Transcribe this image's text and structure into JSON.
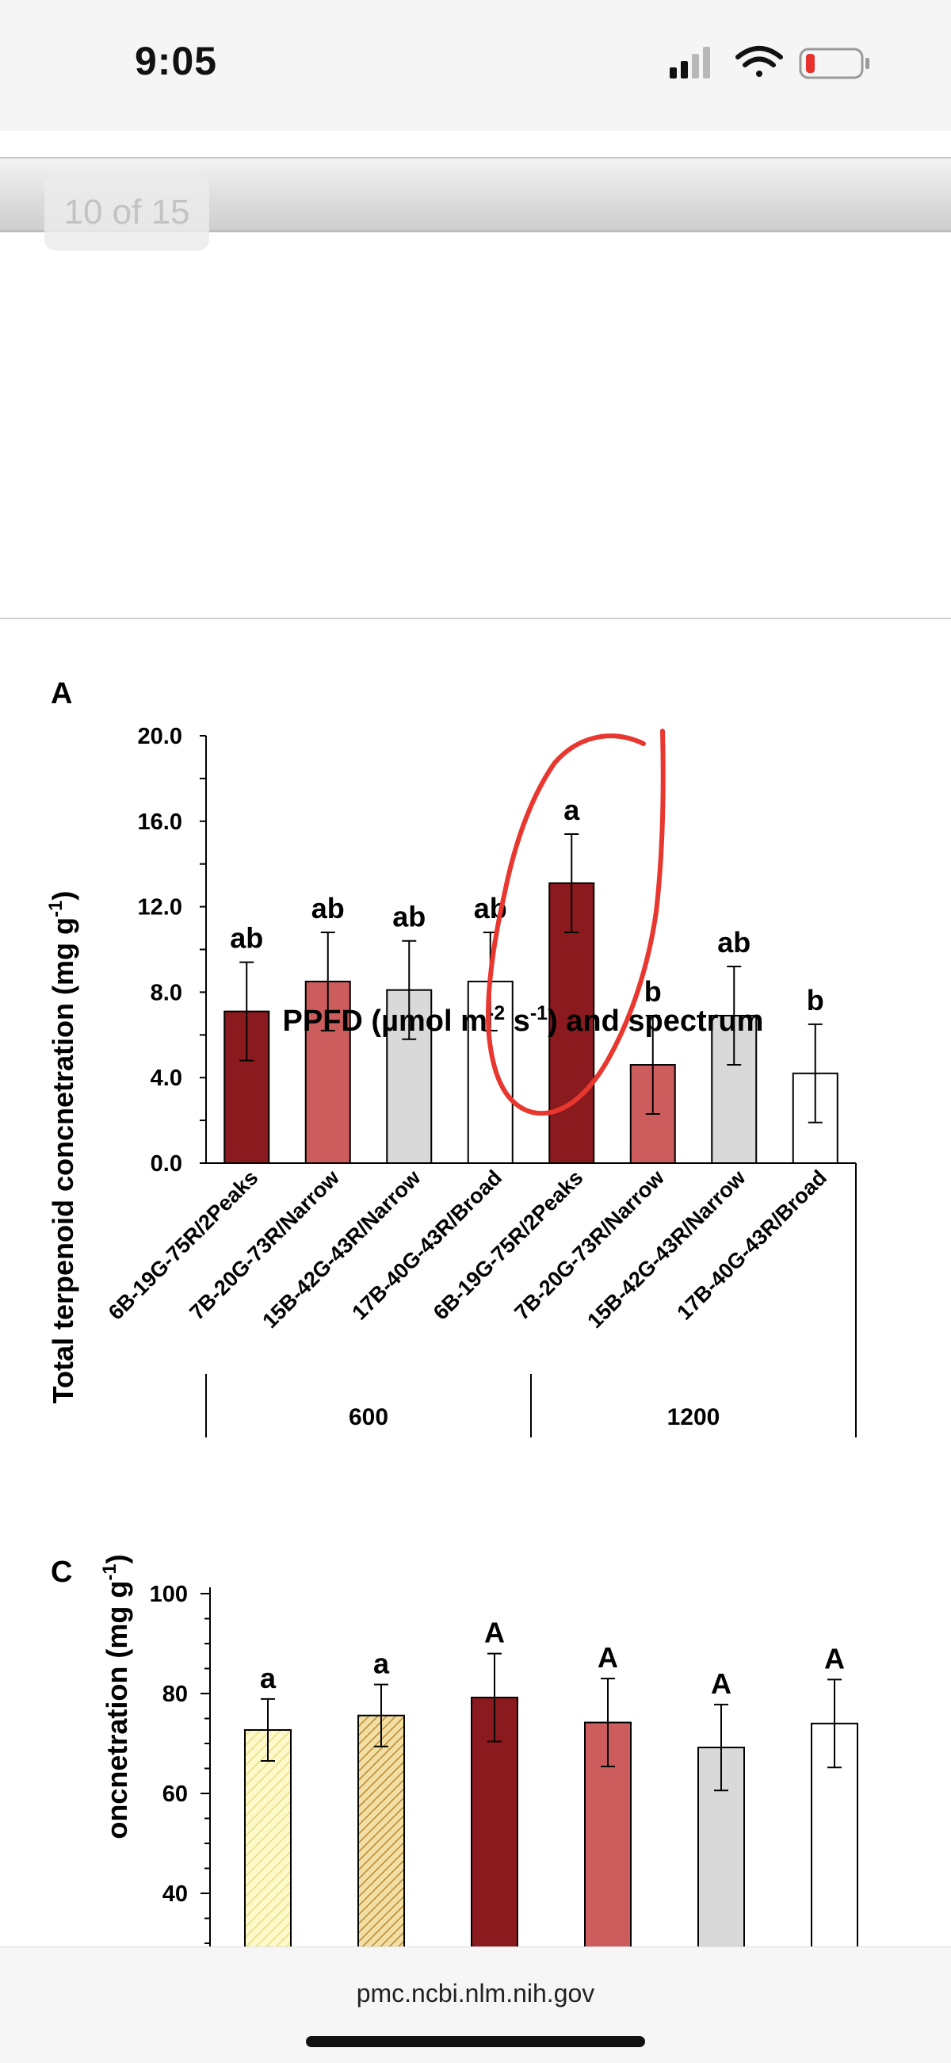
{
  "status_bar": {
    "time": "9:05",
    "icons": [
      "cellular-signal-icon",
      "wifi-icon",
      "battery-low-icon"
    ],
    "battery_color": "#e5322d"
  },
  "viewer": {
    "page_indicator": "10 of 15"
  },
  "browser": {
    "url": "pmc.ncbi.nlm.nih.gov"
  },
  "annotation": {
    "color": "#e8372f",
    "description": "hand-drawn circle around 6B-19G-75R/2Peaks at 1200"
  },
  "chart_data": [
    {
      "type": "bar",
      "panel_label": "A",
      "title": "",
      "ylabel": "Total terpenoid concnetration (mg g",
      "ylabel_sup": "-1",
      "ylabel_end": ")",
      "xlabel": "PPFD (µmol m",
      "xlabel_sup1": "-2",
      "xlabel_mid": " s",
      "xlabel_sup2": "-1",
      "xlabel_end": ") and spectrum",
      "ylim": [
        0,
        20
      ],
      "yticks": [
        "0.0",
        "4.0",
        "8.0",
        "12.0",
        "16.0",
        "20.0"
      ],
      "yticks_values": [
        0,
        4,
        8,
        12,
        16,
        20
      ],
      "categories": [
        "6B-19G-75R/2Peaks",
        "7B-20G-73R/Narrow",
        "15B-42G-43R/Narrow",
        "17B-40G-43R/Broad",
        "6B-19G-75R/2Peaks",
        "7B-20G-73R/Narrow",
        "15B-42G-43R/Narrow",
        "17B-40G-43R/Broad"
      ],
      "groups": [
        {
          "label": "600",
          "start": 0,
          "end": 3
        },
        {
          "label": "1200",
          "start": 4,
          "end": 7
        }
      ],
      "values": [
        7.1,
        8.5,
        8.1,
        8.5,
        13.1,
        4.6,
        6.9,
        4.2
      ],
      "errors": [
        2.3,
        2.3,
        2.3,
        2.3,
        2.3,
        2.3,
        2.3,
        2.3
      ],
      "letters": [
        "ab",
        "ab",
        "ab",
        "ab",
        "a",
        "b",
        "ab",
        "b"
      ],
      "colors": [
        "#8b1a1e",
        "#cd5c5c",
        "#d9d9d9",
        "#ffffff",
        "#8b1a1e",
        "#cd5c5c",
        "#d9d9d9",
        "#ffffff"
      ]
    },
    {
      "type": "bar",
      "panel_label": "C",
      "title": "",
      "ylabel": "oncnetration (mg g",
      "ylabel_sup": "-1",
      "ylabel_end": ")",
      "ylim": [
        35,
        100
      ],
      "yticks": [
        "40",
        "60",
        "80",
        "100"
      ],
      "yticks_values": [
        40,
        60,
        80,
        100
      ],
      "values": [
        72.7,
        75.6,
        79.2,
        74.2,
        69.2,
        74.0
      ],
      "errors": [
        6.2,
        6.2,
        8.8,
        8.8,
        8.6,
        8.8
      ],
      "letters": [
        "a",
        "a",
        "A",
        "A",
        "A",
        "A"
      ],
      "colors": [
        "#fdf9c8",
        "#e8c070",
        "#8b1a1e",
        "#cd5c5c",
        "#d9d9d9",
        "#ffffff"
      ],
      "patterns": [
        "hatch-light",
        "hatch-gold",
        "solid",
        "solid",
        "solid",
        "solid"
      ]
    }
  ]
}
